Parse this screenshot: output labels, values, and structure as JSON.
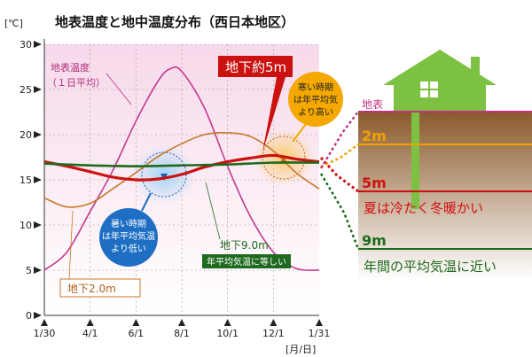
{
  "chart_data": {
    "type": "line",
    "title": "地表温度と地中温度分布（西日本地区）",
    "y_unit_label": "[℃]",
    "x_unit_label": "[月/日]",
    "ylim": [
      0,
      30
    ],
    "y_ticks": [
      "0",
      "5",
      "10",
      "15",
      "20",
      "25",
      "30"
    ],
    "x_ticks": [
      "1/30",
      "4/1",
      "6/1",
      "8/1",
      "10/1",
      "12/1",
      "1/31"
    ],
    "x_tick_days": [
      0,
      61,
      122,
      183,
      244,
      305,
      366
    ],
    "grid": true,
    "series": [
      {
        "name": "地表温度",
        "x": [
          0,
          30,
          61,
          91,
          122,
          152,
          168,
          183,
          213,
          244,
          274,
          305,
          335,
          366
        ],
        "y": [
          5,
          7,
          11.5,
          16,
          21.5,
          26,
          27.3,
          27,
          23,
          16.5,
          11,
          7,
          5.2,
          5
        ],
        "color": "#c23a8e"
      },
      {
        "name": "地下2.0m",
        "x": [
          0,
          30,
          61,
          91,
          122,
          152,
          183,
          213,
          244,
          274,
          305,
          335,
          366
        ],
        "y": [
          13,
          12,
          12.4,
          14,
          15.8,
          17.6,
          19,
          20,
          20.2,
          19.8,
          18.2,
          15.8,
          14
        ],
        "color": "#c8782a"
      },
      {
        "name": "地下約5m",
        "x": [
          0,
          30,
          61,
          91,
          122,
          152,
          183,
          213,
          244,
          274,
          305,
          335,
          366
        ],
        "y": [
          17,
          16.5,
          15.9,
          15.3,
          15,
          15.1,
          15.6,
          16.4,
          17,
          17.4,
          17.7,
          17.3,
          17
        ],
        "color": "#cc1111"
      },
      {
        "name": "地下9.0m",
        "x": [
          0,
          61,
          122,
          183,
          244,
          305,
          366
        ],
        "y": [
          16.8,
          16.6,
          16.5,
          16.6,
          16.7,
          16.9,
          16.9
        ],
        "color": "#1e6a1e"
      }
    ],
    "annotations": {
      "surface_label": "地表温度",
      "surface_sub": "（１日平均）",
      "m5_label": "地下約5m",
      "m2_label": "地下2.0m",
      "m9_label": "地下9.0m",
      "m9_sub": "年平均気温に等しい",
      "cold_bubble": [
        "寒い時期",
        "は年平均気",
        "より高い"
      ],
      "hot_bubble": [
        "暑い時期",
        "は年平均気温",
        "より低い"
      ]
    }
  },
  "side_panel": {
    "surface": "地表",
    "depth_2m": "2m",
    "depth_5m": "5m",
    "depth_9m": "9m",
    "caption_5m": "夏は冷たく冬暖かい",
    "caption_9m": "年間の平均気温に近い",
    "colors": {
      "house": "#7dc142",
      "ground": "#8b5a2b",
      "magenta": "#c2307f",
      "orange": "#f0a000",
      "red": "#d01010",
      "green": "#1e6a1e"
    }
  }
}
